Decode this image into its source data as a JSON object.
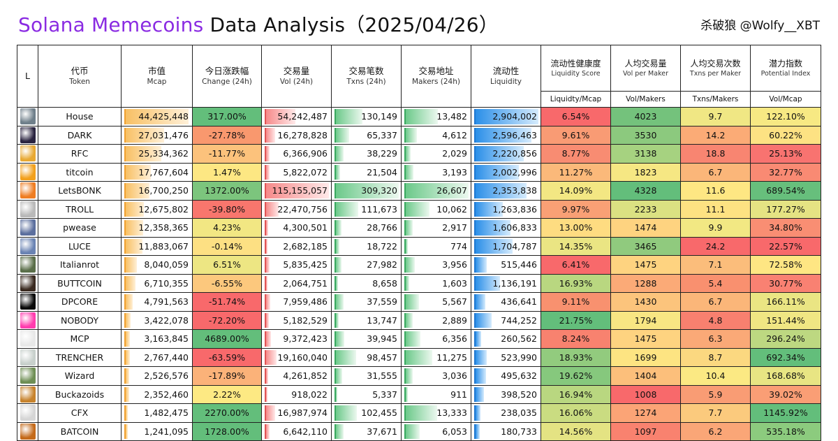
{
  "title": {
    "part1": "Solana Memecoins",
    "part2": "Data Analysis（2025/04/26）"
  },
  "author": "杀破狼 @Wolfy__XBT",
  "headers": [
    {
      "zh": "L",
      "en": ""
    },
    {
      "zh": "代币",
      "en": "Token"
    },
    {
      "zh": "市值",
      "en": "Mcap"
    },
    {
      "zh": "今日涨跌幅",
      "en": "Change (24h)"
    },
    {
      "zh": "交易量",
      "en": "Vol (24h)"
    },
    {
      "zh": "交易笔数",
      "en": "Txns (24h)"
    },
    {
      "zh": "交易地址",
      "en": "Makers (24h)"
    },
    {
      "zh": "流动性",
      "en": "Liquidity"
    },
    {
      "zh": "流动性健康度",
      "en": "Liquidity Score"
    },
    {
      "zh": "人均交易量",
      "en": "Vol per Maker"
    },
    {
      "zh": "人均交易次数",
      "en": "Txns per Maker"
    },
    {
      "zh": "潜力指数",
      "en": "Potential Index"
    }
  ],
  "subheaders": [
    "Liquidty/Mcap",
    "Vol/Makers",
    "Txns/Makers",
    "Vol/Mcap"
  ],
  "max": {
    "mcap": 44425448,
    "vol": 115155057,
    "txns": 309320,
    "makers": 26607,
    "liq": 2904002
  },
  "rows": [
    {
      "token": "House",
      "icon": "house-photo-icon",
      "mcap": "44,425,448",
      "mcap_v": 44425448,
      "change": "317.00%",
      "change_bg": "#63be7b",
      "vol": "54,242,487",
      "vol_v": 54242487,
      "txns": "130,149",
      "txns_v": 130149,
      "makers": "13,482",
      "makers_v": 13482,
      "liq": "2,904,002",
      "liq_v": 2904002,
      "ls": "6.54%",
      "ls_bg": "#f8696b",
      "vpm": "4023",
      "vpm_bg": "#74c27c",
      "tpm": "9.7",
      "tpm_bg": "#f0e784",
      "pi": "122.10%",
      "pi_bg": "#f7e983"
    },
    {
      "token": "DARK",
      "icon": "dark-logo-icon",
      "mcap": "27,031,476",
      "mcap_v": 27031476,
      "change": "-27.78%",
      "change_bg": "#f9986e",
      "vol": "16,278,828",
      "vol_v": 16278828,
      "txns": "65,337",
      "txns_v": 65337,
      "makers": "4,612",
      "makers_v": 4612,
      "liq": "2,596,463",
      "liq_v": 2596463,
      "ls": "9.61%",
      "ls_bg": "#f99b74",
      "vpm": "3530",
      "vpm_bg": "#8cc97e",
      "tpm": "14.2",
      "tpm_bg": "#fbab76",
      "pi": "60.22%",
      "pi_bg": "#fde283"
    },
    {
      "token": "RFC",
      "icon": "rfc-coin-icon",
      "mcap": "25,334,362",
      "mcap_v": 25334362,
      "change": "-11.77%",
      "change_bg": "#fcc27c",
      "vol": "6,366,906",
      "vol_v": 6366906,
      "txns": "38,229",
      "txns_v": 38229,
      "makers": "2,029",
      "makers_v": 2029,
      "liq": "2,220,856",
      "liq_v": 2220856,
      "ls": "8.77%",
      "ls_bg": "#f88c72",
      "vpm": "3138",
      "vpm_bg": "#a6d280",
      "tpm": "18.8",
      "tpm_bg": "#f88571",
      "pi": "25.13%",
      "pi_bg": "#f87370"
    },
    {
      "token": "titcoin",
      "icon": "titcoin-logo-icon",
      "mcap": "17,767,604",
      "mcap_v": 17767604,
      "change": "1.47%",
      "change_bg": "#fde783",
      "vol": "5,822,072",
      "vol_v": 5822072,
      "txns": "21,504",
      "txns_v": 21504,
      "makers": "3,193",
      "makers_v": 3193,
      "liq": "2,002,996",
      "liq_v": 2002996,
      "ls": "11.27%",
      "ls_bg": "#fbb97a",
      "vpm": "1823",
      "vpm_bg": "#f6e783",
      "tpm": "6.7",
      "tpm_bg": "#fbb679",
      "pi": "32.77%",
      "pi_bg": "#f98a73"
    },
    {
      "token": "LetsBONK",
      "icon": "letsbonk-logo-icon",
      "mcap": "16,700,250",
      "mcap_v": 16700250,
      "change": "1372.00%",
      "change_bg": "#7cc57d",
      "vol": "115,155,057",
      "vol_v": 115155057,
      "txns": "309,320",
      "txns_v": 309320,
      "makers": "26,607",
      "makers_v": 26607,
      "liq": "2,353,838",
      "liq_v": 2353838,
      "ls": "14.09%",
      "ls_bg": "#f3e783",
      "vpm": "4328",
      "vpm_bg": "#63be7b",
      "tpm": "11.6",
      "tpm_bg": "#fee783",
      "pi": "689.54%",
      "pi_bg": "#67bf7c"
    },
    {
      "token": "TROLL",
      "icon": "troll-face-icon",
      "mcap": "12,675,802",
      "mcap_v": 12675802,
      "change": "-39.80%",
      "change_bg": "#f8766d",
      "vol": "22,470,756",
      "vol_v": 22470756,
      "txns": "111,673",
      "txns_v": 111673,
      "makers": "10,062",
      "makers_v": 10062,
      "liq": "1,263,836",
      "liq_v": 1263836,
      "ls": "9.97%",
      "ls_bg": "#f9a075",
      "vpm": "2233",
      "vpm_bg": "#dbe182",
      "tpm": "11.1",
      "tpm_bg": "#fde282",
      "pi": "177.27%",
      "pi_bg": "#e5e383"
    },
    {
      "token": "pwease",
      "icon": "pwease-avatar-icon",
      "mcap": "12,358,365",
      "mcap_v": 12358365,
      "change": "4.23%",
      "change_bg": "#f2e783",
      "vol": "4,300,501",
      "vol_v": 4300501,
      "txns": "28,766",
      "txns_v": 28766,
      "makers": "2,917",
      "makers_v": 2917,
      "liq": "1,606,833",
      "liq_v": 1606833,
      "ls": "13.00%",
      "ls_bg": "#fedc81",
      "vpm": "1474",
      "vpm_bg": "#fed380",
      "tpm": "9.9",
      "tpm_bg": "#f2e883",
      "pi": "34.80%",
      "pi_bg": "#f98e73"
    },
    {
      "token": "LUCE",
      "icon": "luce-avatar-icon",
      "mcap": "11,883,067",
      "mcap_v": 11883067,
      "change": "-0.14%",
      "change_bg": "#fde083",
      "vol": "2,682,185",
      "vol_v": 2682185,
      "txns": "18,722",
      "txns_v": 18722,
      "makers": "774",
      "makers_v": 774,
      "liq": "1,704,787",
      "liq_v": 1704787,
      "ls": "14.35%",
      "ls_bg": "#eae583",
      "vpm": "3465",
      "vpm_bg": "#90ca7e",
      "tpm": "24.2",
      "tpm_bg": "#f8696b",
      "pi": "22.57%",
      "pi_bg": "#f8696b"
    },
    {
      "token": "Italianrot",
      "icon": "italianrot-photo-icon",
      "mcap": "8,040,059",
      "mcap_v": 8040059,
      "change": "6.51%",
      "change_bg": "#ede683",
      "vol": "5,835,425",
      "vol_v": 5835425,
      "txns": "27,982",
      "txns_v": 27982,
      "makers": "3,956",
      "makers_v": 3956,
      "liq": "515,446",
      "liq_v": 515446,
      "ls": "6.41%",
      "ls_bg": "#f8696b",
      "vpm": "1475",
      "vpm_bg": "#fed380",
      "tpm": "7.1",
      "tpm_bg": "#fbbd7b",
      "pi": "72.58%",
      "pi_bg": "#fee683"
    },
    {
      "token": "BUTTCOIN",
      "icon": "buttcoin-avatar-icon",
      "mcap": "6,710,355",
      "mcap_v": 6710355,
      "change": "-6.55%",
      "change_bg": "#fcc87d",
      "vol": "2,064,751",
      "vol_v": 2064751,
      "txns": "8,658",
      "txns_v": 8658,
      "makers": "1,603",
      "makers_v": 1603,
      "liq": "1,136,191",
      "liq_v": 1136191,
      "ls": "16.93%",
      "ls_bg": "#b9d780",
      "vpm": "1288",
      "vpm_bg": "#fbaa77",
      "tpm": "5.4",
      "tpm_bg": "#f9906f",
      "pi": "30.77%",
      "pi_bg": "#f98172"
    },
    {
      "token": "DPCORE",
      "icon": "dpcore-logo-icon",
      "mcap": "4,791,563",
      "mcap_v": 4791563,
      "change": "-51.74%",
      "change_bg": "#f8696b",
      "vol": "7,959,486",
      "vol_v": 7959486,
      "txns": "37,559",
      "txns_v": 37559,
      "makers": "5,567",
      "makers_v": 5567,
      "liq": "436,641",
      "liq_v": 436641,
      "ls": "9.11%",
      "ls_bg": "#f8916f",
      "vpm": "1430",
      "vpm_bg": "#fcc47c",
      "tpm": "6.7",
      "tpm_bg": "#fbb679",
      "pi": "166.11%",
      "pi_bg": "#eae583"
    },
    {
      "token": "NOBODY",
      "icon": "nobody-ghost-icon",
      "mcap": "3,422,078",
      "mcap_v": 3422078,
      "change": "-72.20%",
      "change_bg": "#f8696b",
      "vol": "5,182,529",
      "vol_v": 5182529,
      "txns": "13,747",
      "txns_v": 13747,
      "makers": "2,889",
      "makers_v": 2889,
      "liq": "744,252",
      "liq_v": 744252,
      "ls": "21.75%",
      "ls_bg": "#63be7b",
      "vpm": "1794",
      "vpm_bg": "#f8e683",
      "tpm": "4.8",
      "tpm_bg": "#f8806f",
      "pi": "151.44%",
      "pi_bg": "#f0e683"
    },
    {
      "token": "MCP",
      "icon": "mcp-dots-icon",
      "mcap": "3,163,845",
      "mcap_v": 3163845,
      "change": "4689.00%",
      "change_bg": "#63be7b",
      "vol": "9,372,423",
      "vol_v": 9372423,
      "txns": "39,945",
      "txns_v": 39945,
      "makers": "6,356",
      "makers_v": 6356,
      "liq": "260,562",
      "liq_v": 260562,
      "ls": "8.24%",
      "ls_bg": "#f8826f",
      "vpm": "1475",
      "vpm_bg": "#fed380",
      "tpm": "6.3",
      "tpm_bg": "#faa977",
      "pi": "296.24%",
      "pi_bg": "#bdd881"
    },
    {
      "token": "TRENCHER",
      "icon": "trencher-collage-icon",
      "mcap": "2,767,440",
      "mcap_v": 2767440,
      "change": "-63.59%",
      "change_bg": "#f8696b",
      "vol": "19,160,040",
      "vol_v": 19160040,
      "txns": "98,457",
      "txns_v": 98457,
      "makers": "11,275",
      "makers_v": 11275,
      "liq": "523,990",
      "liq_v": 523990,
      "ls": "18.93%",
      "ls_bg": "#92cb7e",
      "vpm": "1699",
      "vpm_bg": "#fde482",
      "tpm": "8.7",
      "tpm_bg": "#fbd880",
      "pi": "692.34%",
      "pi_bg": "#63be7b"
    },
    {
      "token": "Wizard",
      "icon": "wizard-photo-icon",
      "mcap": "2,526,576",
      "mcap_v": 2526576,
      "change": "-17.89%",
      "change_bg": "#fbb279",
      "vol": "4,261,852",
      "vol_v": 4261852,
      "txns": "31,555",
      "txns_v": 31555,
      "makers": "3,036",
      "makers_v": 3036,
      "liq": "495,632",
      "liq_v": 495632,
      "ls": "19.62%",
      "ls_bg": "#86c87d",
      "vpm": "1404",
      "vpm_bg": "#fcbf7b",
      "tpm": "10.4",
      "tpm_bg": "#fbe983",
      "pi": "168.68%",
      "pi_bg": "#e8e583"
    },
    {
      "token": "Buckazoids",
      "icon": "buckazoids-coin-icon",
      "mcap": "2,352,460",
      "mcap_v": 2352460,
      "change": "2.22%",
      "change_bg": "#fde983",
      "vol": "918,022",
      "vol_v": 918022,
      "txns": "5,337",
      "txns_v": 5337,
      "makers": "911",
      "makers_v": 911,
      "liq": "398,520",
      "liq_v": 398520,
      "ls": "16.94%",
      "ls_bg": "#b9d780",
      "vpm": "1008",
      "vpm_bg": "#f8696b",
      "tpm": "5.9",
      "tpm_bg": "#f99c74",
      "pi": "39.02%",
      "pi_bg": "#fa9e75"
    },
    {
      "token": "CFX",
      "icon": "cfx-comic-icon",
      "mcap": "1,482,475",
      "mcap_v": 1482475,
      "change": "2270.00%",
      "change_bg": "#63be7b",
      "vol": "16,987,974",
      "vol_v": 16987974,
      "txns": "102,455",
      "txns_v": 102455,
      "makers": "13,333",
      "makers_v": 13333,
      "liq": "238,035",
      "liq_v": 238035,
      "ls": "16.06%",
      "ls_bg": "#cadc81",
      "vpm": "1274",
      "vpm_bg": "#fba476",
      "tpm": "7.7",
      "tpm_bg": "#fbca7d",
      "pi": "1145.92%",
      "pi_bg": "#63be7b"
    },
    {
      "token": "BATCOIN",
      "icon": "batcoin-logo-icon",
      "mcap": "1,241,095",
      "mcap_v": 1241095,
      "change": "1728.00%",
      "change_bg": "#63be7b",
      "vol": "6,642,110",
      "vol_v": 6642110,
      "txns": "37,671",
      "txns_v": 37671,
      "makers": "6,053",
      "makers_v": 6053,
      "liq": "180,733",
      "liq_v": 180733,
      "ls": "14.56%",
      "ls_bg": "#e4e383",
      "vpm": "1097",
      "vpm_bg": "#f9826f",
      "tpm": "6.2",
      "tpm_bg": "#faa677",
      "pi": "535.18%",
      "pi_bg": "#8ccb7e"
    }
  ],
  "icon_colors": [
    "#6f7f8a",
    "#2a2440",
    "#e8a933",
    "#f2a01c",
    "#ef7d22",
    "#b9b9b9",
    "#5c6f9e",
    "#6a83b3",
    "#5a6e49",
    "#3a2a20",
    "#0a0a0a",
    "#ff3cae",
    "#e8e8e8",
    "#c8d0cc",
    "#6f8f55",
    "#c7832d",
    "#d6d6d6",
    "#c46a1a"
  ]
}
